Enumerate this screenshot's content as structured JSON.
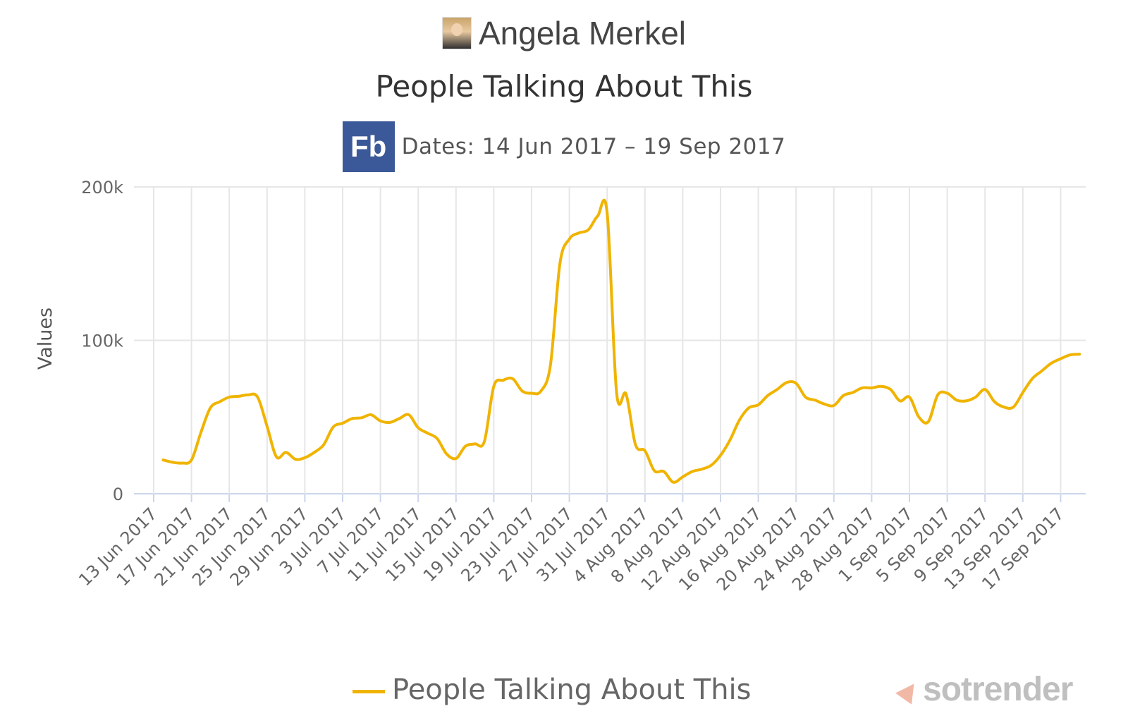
{
  "header": {
    "page_name": "Angela Merkel",
    "chart_title": "People Talking About This",
    "fb_logo_text": "Fb",
    "date_range": "Dates: 14 Jun 2017 – 19 Sep 2017"
  },
  "legend": {
    "label": "People Talking About This"
  },
  "watermark": {
    "text": "sotrender"
  },
  "colors": {
    "series": "#f0b400",
    "grid": "#e6e6e6",
    "axis": "#ccd6eb",
    "fb_blue": "#3b5998"
  },
  "chart_data": {
    "type": "line",
    "title": "People Talking About This",
    "subtitle": "Dates: 14 Jun 2017 – 19 Sep 2017",
    "xlabel": "",
    "ylabel": "Values",
    "ylim": [
      0,
      200000
    ],
    "y_ticks": [
      "0",
      "100k",
      "200k"
    ],
    "y_tick_values": [
      0,
      100000,
      200000
    ],
    "grid": true,
    "legend_position": "bottom",
    "x_tick_labels": [
      "13 Jun 2017",
      "17 Jun 2017",
      "21 Jun 2017",
      "25 Jun 2017",
      "29 Jun 2017",
      "3 Jul 2017",
      "7 Jul 2017",
      "11 Jul 2017",
      "15 Jul 2017",
      "19 Jul 2017",
      "23 Jul 2017",
      "27 Jul 2017",
      "31 Jul 2017",
      "4 Aug 2017",
      "8 Aug 2017",
      "12 Aug 2017",
      "16 Aug 2017",
      "20 Aug 2017",
      "24 Aug 2017",
      "28 Aug 2017",
      "1 Sep 2017",
      "5 Sep 2017",
      "9 Sep 2017",
      "13 Sep 2017",
      "17 Sep 2017"
    ],
    "series": [
      {
        "name": "People Talking About This",
        "x": [
          "14 Jun 2017",
          "15 Jun 2017",
          "16 Jun 2017",
          "17 Jun 2017",
          "18 Jun 2017",
          "19 Jun 2017",
          "20 Jun 2017",
          "21 Jun 2017",
          "22 Jun 2017",
          "23 Jun 2017",
          "24 Jun 2017",
          "25 Jun 2017",
          "26 Jun 2017",
          "27 Jun 2017",
          "28 Jun 2017",
          "29 Jun 2017",
          "30 Jun 2017",
          "1 Jul 2017",
          "2 Jul 2017",
          "3 Jul 2017",
          "4 Jul 2017",
          "5 Jul 2017",
          "6 Jul 2017",
          "7 Jul 2017",
          "8 Jul 2017",
          "9 Jul 2017",
          "10 Jul 2017",
          "11 Jul 2017",
          "12 Jul 2017",
          "13 Jul 2017",
          "14 Jul 2017",
          "15 Jul 2017",
          "16 Jul 2017",
          "17 Jul 2017",
          "18 Jul 2017",
          "19 Jul 2017",
          "20 Jul 2017",
          "21 Jul 2017",
          "22 Jul 2017",
          "23 Jul 2017",
          "24 Jul 2017",
          "25 Jul 2017",
          "26 Jul 2017",
          "27 Jul 2017",
          "28 Jul 2017",
          "29 Jul 2017",
          "30 Jul 2017",
          "31 Jul 2017",
          "1 Aug 2017",
          "2 Aug 2017",
          "3 Aug 2017",
          "4 Aug 2017",
          "5 Aug 2017",
          "6 Aug 2017",
          "7 Aug 2017",
          "8 Aug 2017",
          "9 Aug 2017",
          "10 Aug 2017",
          "11 Aug 2017",
          "12 Aug 2017",
          "13 Aug 2017",
          "14 Aug 2017",
          "15 Aug 2017",
          "16 Aug 2017",
          "17 Aug 2017",
          "18 Aug 2017",
          "19 Aug 2017",
          "20 Aug 2017",
          "21 Aug 2017",
          "22 Aug 2017",
          "23 Aug 2017",
          "24 Aug 2017",
          "25 Aug 2017",
          "26 Aug 2017",
          "27 Aug 2017",
          "28 Aug 2017",
          "29 Aug 2017",
          "30 Aug 2017",
          "31 Aug 2017",
          "1 Sep 2017",
          "2 Sep 2017",
          "3 Sep 2017",
          "4 Sep 2017",
          "5 Sep 2017",
          "6 Sep 2017",
          "7 Sep 2017",
          "8 Sep 2017",
          "9 Sep 2017",
          "10 Sep 2017",
          "11 Sep 2017",
          "12 Sep 2017",
          "13 Sep 2017",
          "14 Sep 2017",
          "15 Sep 2017",
          "16 Sep 2017",
          "17 Sep 2017",
          "18 Sep 2017",
          "19 Sep 2017"
        ],
        "values": [
          22000,
          20500,
          20000,
          22000,
          40000,
          56000,
          60000,
          63000,
          63500,
          64500,
          63000,
          44000,
          24000,
          27000,
          22500,
          23500,
          27000,
          32000,
          43500,
          46000,
          49000,
          49500,
          51500,
          47500,
          46500,
          49000,
          51500,
          43000,
          39500,
          36000,
          26000,
          23000,
          31000,
          32500,
          34000,
          70000,
          74000,
          75000,
          67000,
          65500,
          67000,
          84000,
          150000,
          166000,
          170000,
          172000,
          181000,
          183000,
          66000,
          65000,
          32000,
          28000,
          15000,
          14500,
          7500,
          11000,
          14500,
          16000,
          18500,
          25000,
          35000,
          48000,
          56000,
          58000,
          64000,
          68000,
          72500,
          72000,
          63000,
          61000,
          58500,
          57500,
          64000,
          66000,
          69000,
          69000,
          70000,
          68000,
          60500,
          63000,
          50000,
          47000,
          64500,
          65500,
          61000,
          60500,
          63000,
          68000,
          60000,
          56500,
          56500,
          66000,
          75000,
          80000,
          85000,
          88000,
          90500,
          91000
        ]
      }
    ]
  }
}
